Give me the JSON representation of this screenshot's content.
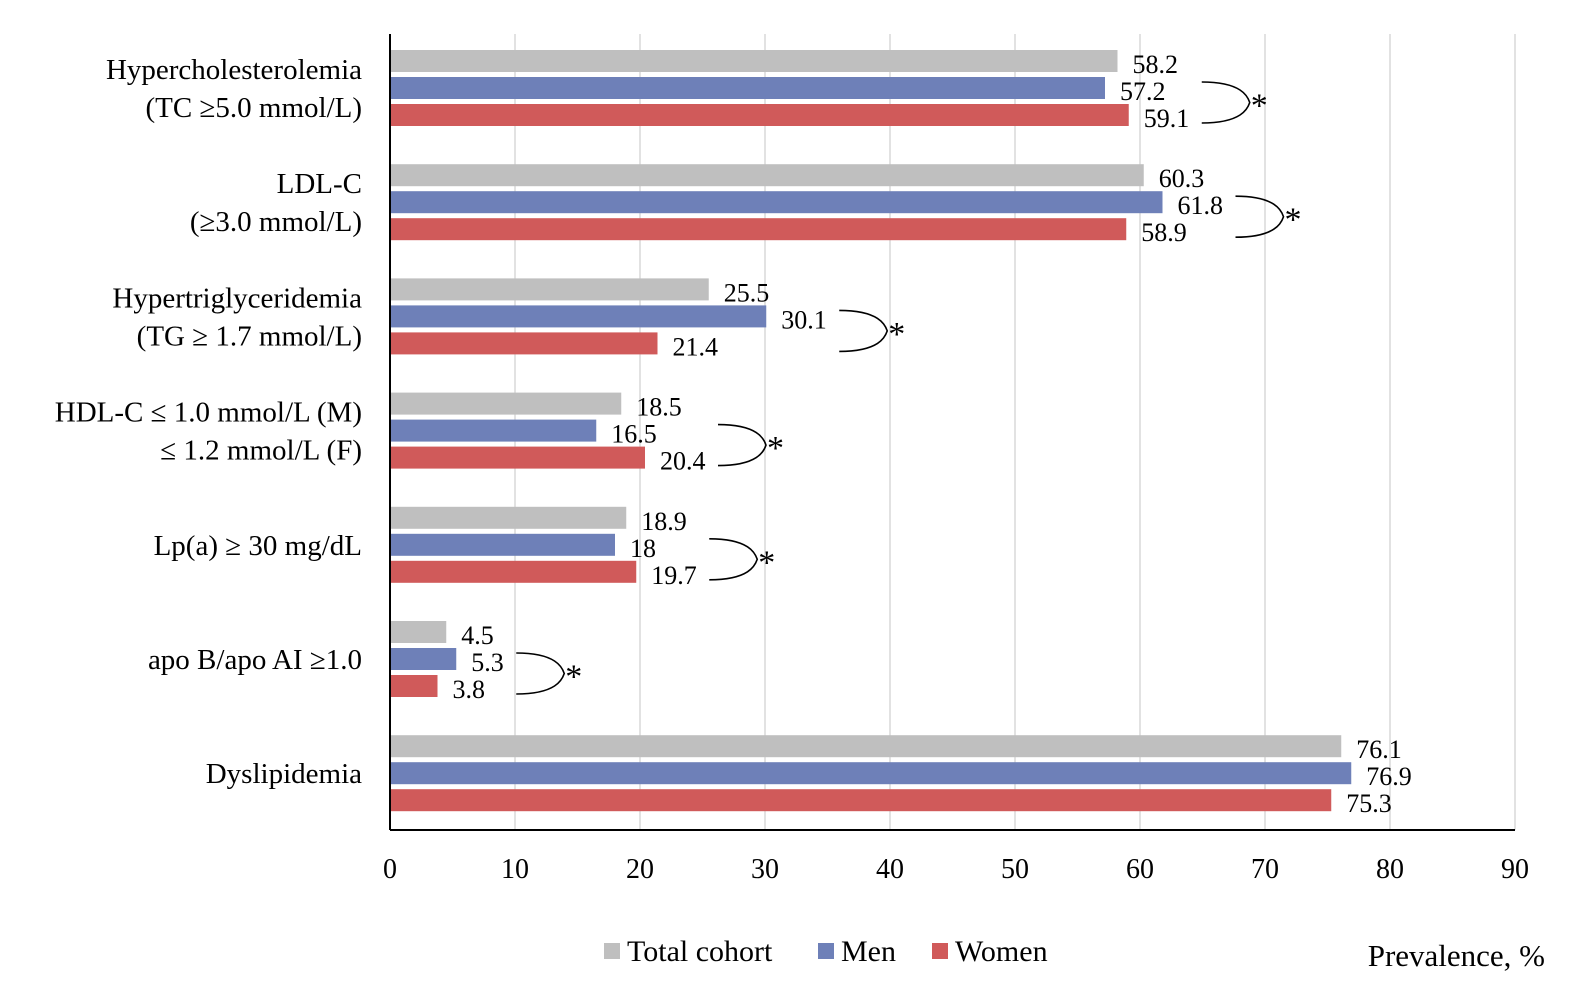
{
  "chart_data": {
    "type": "bar",
    "orientation": "horizontal",
    "categories": [
      [
        "Hypercholesterolemia",
        "(TC ≥5.0 mmol/L)"
      ],
      [
        "LDL-C",
        "(≥3.0 mmol/L)"
      ],
      [
        "Hypertriglyceridemia",
        "(TG ≥ 1.7 mmol/L)"
      ],
      [
        "HDL-C ≤ 1.0 mmol/L (M)",
        "≤ 1.2 mmol/L (F)"
      ],
      [
        "Lp(a) ≥ 30 mg/dL"
      ],
      [
        "apo B/apo AI ≥1.0"
      ],
      [
        "Dyslipidemia"
      ]
    ],
    "series": [
      {
        "name": "Total cohort",
        "color": "#bfbfbf",
        "values": [
          58.2,
          60.3,
          25.5,
          18.5,
          18.9,
          4.5,
          76.1
        ],
        "labels": [
          "58.2",
          "60.3",
          "25.5",
          "18.5",
          "18.9",
          "4.5",
          "76.1"
        ]
      },
      {
        "name": "Men",
        "color": "#6e80b8",
        "values": [
          57.2,
          61.8,
          30.1,
          16.5,
          18,
          5.3,
          76.9
        ],
        "labels": [
          "57.2",
          "61.8",
          "30.1",
          "16.5",
          "18",
          "5.3",
          "76.9"
        ]
      },
      {
        "name": "Women",
        "color": "#d05a5a",
        "values": [
          59.1,
          58.9,
          21.4,
          20.4,
          19.7,
          3.8,
          75.3
        ],
        "labels": [
          "59.1",
          "58.9",
          "21.4",
          "20.4",
          "19.7",
          "3.8",
          "75.3"
        ]
      }
    ],
    "significance": [
      true,
      true,
      true,
      true,
      true,
      true,
      false
    ],
    "significance_mark": "*",
    "xlim": [
      0,
      90
    ],
    "xticks": [
      0,
      10,
      20,
      30,
      40,
      50,
      60,
      70,
      80,
      90
    ],
    "xlabel": "Prevalence, %",
    "ylabel": "",
    "title": "",
    "grid": true,
    "legend_position": "bottom"
  }
}
